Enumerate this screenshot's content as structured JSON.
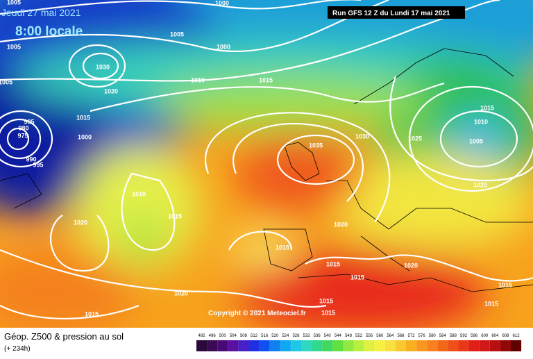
{
  "header": {
    "date": "Jeudi 27 mai 2021",
    "time": "8:00 locale",
    "run": "Run GFS 12 Z du Lundi 17 mai 2021"
  },
  "copyright": "Copyright © 2021 Meteociel.fr",
  "footer": {
    "title": "Géop. Z500 & pression au sol",
    "lead": "(+ 234h)"
  },
  "scale": [
    492,
    496,
    500,
    504,
    508,
    512,
    516,
    520,
    524,
    528,
    532,
    536,
    540,
    544,
    548,
    552,
    556,
    560,
    564,
    568,
    572,
    576,
    580,
    584,
    588,
    592,
    596,
    600,
    604,
    608,
    612
  ],
  "isobar_labels": [
    1005,
    1000,
    1005,
    1005,
    1000,
    1030,
    1005,
    1010,
    1015,
    1020,
    1015,
    1000,
    985,
    980,
    975,
    990,
    995,
    1035,
    1030,
    1025,
    1015,
    1010,
    1005,
    1020,
    1010,
    1015,
    1020,
    1020,
    1015,
    1015,
    1020,
    1015,
    1015,
    1020,
    1015,
    1015,
    1015,
    1015
  ]
}
